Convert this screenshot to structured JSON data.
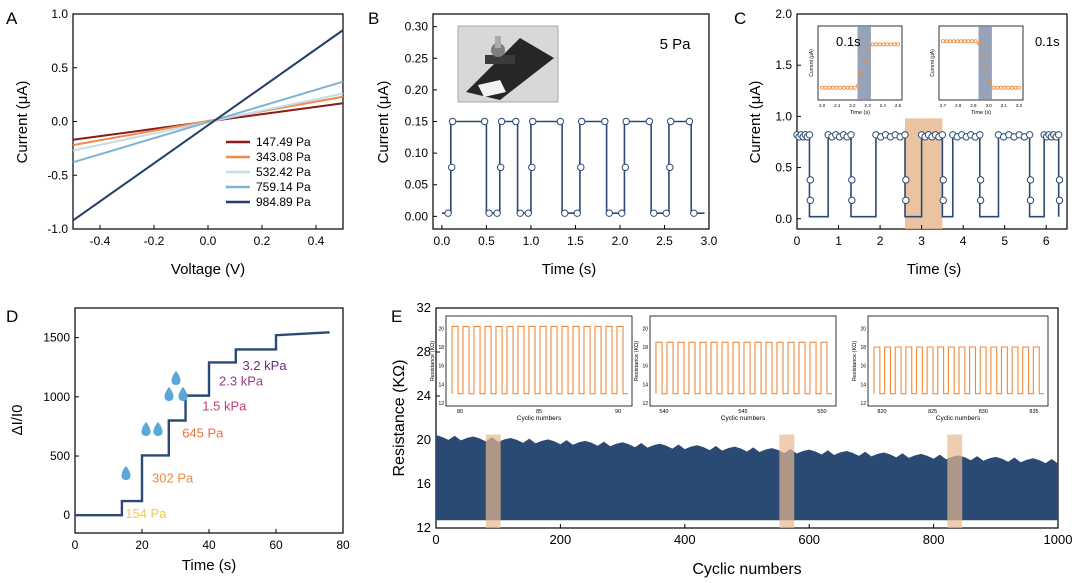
{
  "colors": {
    "navy": "#2b4a73",
    "orange": "#ef8a3c",
    "highlight": "#e7b890",
    "inset_shade": "#7d8ca8",
    "drop": "#5ba7d8",
    "l147": "#8b1a1a",
    "l343": "#f08a4b",
    "l532": "#c8dbe9",
    "l759": "#7fb3d3",
    "l984": "#233f66",
    "c154": "#f2c94c",
    "c302": "#f08a3c",
    "c645": "#e8743b",
    "c15": "#c2417e",
    "c23": "#9b3a8a",
    "c32": "#6b2d7d"
  },
  "chart_data": [
    {
      "panel": "A",
      "type": "line",
      "xlabel": "Voltage (V)",
      "ylabel": "Current (μA)",
      "xlim": [
        -0.5,
        0.5
      ],
      "ylim": [
        -1.0,
        1.0
      ],
      "xticks": [
        "-0.4",
        "-0.2",
        "0.0",
        "0.2",
        "0.4"
      ],
      "yticks": [
        "-1.0",
        "-0.5",
        "0.0",
        "0.5",
        "1.0"
      ],
      "legend_position": "bottom-right",
      "series": [
        {
          "name": "147.49 Pa",
          "x": [
            -0.5,
            0.5
          ],
          "y": [
            -0.17,
            0.17
          ]
        },
        {
          "name": "343.08 Pa",
          "x": [
            -0.5,
            0.5
          ],
          "y": [
            -0.22,
            0.23
          ]
        },
        {
          "name": "532.42 Pa",
          "x": [
            -0.5,
            0.5
          ],
          "y": [
            -0.27,
            0.26
          ]
        },
        {
          "name": "759.14 Pa",
          "x": [
            -0.5,
            0.5
          ],
          "y": [
            -0.38,
            0.37
          ]
        },
        {
          "name": "984.89 Pa",
          "x": [
            -0.5,
            0.5
          ],
          "y": [
            -0.92,
            0.85
          ]
        }
      ]
    },
    {
      "panel": "B",
      "type": "line",
      "xlabel": "Time (s)",
      "ylabel": "Current (μA)",
      "xlim": [
        -0.1,
        3.0
      ],
      "ylim": [
        -0.02,
        0.32
      ],
      "xticks": [
        "0.0",
        "0.5",
        "1.0",
        "1.5",
        "2.0",
        "2.5",
        "3.0"
      ],
      "yticks": [
        "0.00",
        "0.05",
        "0.10",
        "0.15",
        "0.20",
        "0.25",
        "0.30"
      ],
      "annotation": "5 Pa",
      "low": 0.005,
      "high": 0.15,
      "high_intervals": [
        [
          0.1,
          0.5
        ],
        [
          0.65,
          0.85
        ],
        [
          1.0,
          1.35
        ],
        [
          1.55,
          1.85
        ],
        [
          2.05,
          2.35
        ],
        [
          2.55,
          2.8
        ]
      ],
      "x_end": 2.95
    },
    {
      "panel": "C",
      "type": "line",
      "xlabel": "Time (s)",
      "ylabel": "Current (μA)",
      "xlim": [
        0,
        6.5
      ],
      "ylim": [
        -0.1,
        2.0
      ],
      "xticks": [
        "0",
        "1",
        "2",
        "3",
        "4",
        "5",
        "6"
      ],
      "yticks": [
        "0.0",
        "0.5",
        "1.0",
        "1.5",
        "2.0"
      ],
      "highlight_range": [
        2.6,
        3.5
      ],
      "low": 0.02,
      "high": 0.82,
      "high_intervals": [
        [
          0.0,
          0.3
        ],
        [
          0.75,
          1.3
        ],
        [
          1.9,
          2.6
        ],
        [
          3.0,
          3.5
        ],
        [
          3.75,
          4.4
        ],
        [
          4.85,
          5.6
        ],
        [
          5.95,
          6.3
        ]
      ],
      "x_end": 6.3,
      "insets": [
        {
          "annotation": "0.1s",
          "xlabel": "Time (s)",
          "ylabel": "Current (μA)",
          "xticks": [
            "2.0",
            "2.1",
            "2.2",
            "2.3",
            "2.4",
            "2.5"
          ],
          "direction": "rise"
        },
        {
          "annotation": "0.1s",
          "xlabel": "Time (s)",
          "ylabel": "Current (μA)",
          "xticks": [
            "2.7",
            "2.8",
            "2.9",
            "3.0",
            "3.1",
            "3.2"
          ],
          "direction": "fall"
        }
      ]
    },
    {
      "panel": "D",
      "type": "line",
      "xlabel": "Time (s)",
      "ylabel": "ΔI/I0",
      "xlim": [
        0,
        80
      ],
      "ylim": [
        -150,
        1750
      ],
      "xticks": [
        "0",
        "20",
        "40",
        "60",
        "80"
      ],
      "yticks": [
        "0",
        "500",
        "1000",
        "1500"
      ],
      "x": [
        0,
        14,
        14,
        20,
        20,
        28,
        28,
        33,
        33,
        40,
        40,
        48,
        48,
        60,
        60,
        76
      ],
      "y": [
        0,
        0,
        120,
        120,
        505,
        505,
        800,
        800,
        1010,
        1010,
        1290,
        1290,
        1400,
        1400,
        1520,
        1545
      ],
      "annotations": [
        {
          "text": "154 Pa",
          "x": 15,
          "y": 10
        },
        {
          "text": "302 Pa",
          "x": 23,
          "y": 310
        },
        {
          "text": "645 Pa",
          "x": 32,
          "y": 690
        },
        {
          "text": "1.5 kPa",
          "x": 38,
          "y": 920
        },
        {
          "text": "2.3 kPa",
          "x": 43,
          "y": 1130
        },
        {
          "text": "3.2 kPa",
          "x": 50,
          "y": 1260
        }
      ]
    },
    {
      "panel": "E",
      "type": "area",
      "xlabel": "Cyclic numbers",
      "ylabel": "Resistance (KΩ)",
      "xlim": [
        0,
        1000
      ],
      "ylim": [
        12,
        32
      ],
      "xticks": [
        "0",
        "200",
        "400",
        "600",
        "800",
        "1000"
      ],
      "yticks": [
        "12",
        "16",
        "20",
        "24",
        "28",
        "32"
      ],
      "band_top_start": 20.2,
      "band_top_end": 18.0,
      "band_bottom": 12.8,
      "highlights": [
        [
          80,
          104
        ],
        [
          552,
          576
        ],
        [
          822,
          846
        ]
      ],
      "insets": [
        {
          "xlabel": "Cyclic numbers",
          "ylabel": "Resistance (KΩ)",
          "xticks": [
            "80",
            "85",
            "90"
          ],
          "yticks": [
            "12",
            "14",
            "16",
            "18",
            "20"
          ],
          "high": 20.2
        },
        {
          "xlabel": "Cyclic numbers",
          "ylabel": "Resistance (KΩ)",
          "xticks": [
            "540",
            "545",
            "550"
          ],
          "yticks": [
            "12",
            "14",
            "16",
            "18",
            "20"
          ],
          "high": 18.5
        },
        {
          "xlabel": "Cyclic numbers",
          "ylabel": "Resistance (KΩ)",
          "xticks": [
            "820",
            "825",
            "830",
            "835"
          ],
          "yticks": [
            "12",
            "14",
            "16",
            "18",
            "20"
          ],
          "high": 18.0
        }
      ]
    }
  ],
  "panel_letters": [
    "A",
    "B",
    "C",
    "D",
    "E"
  ]
}
